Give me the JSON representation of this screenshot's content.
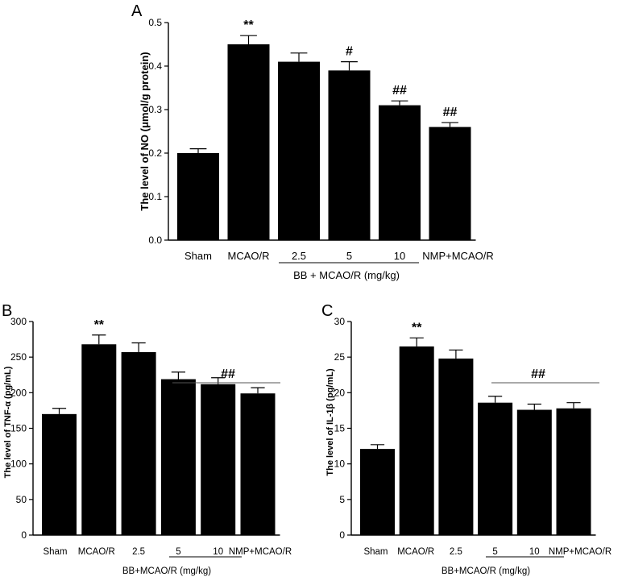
{
  "colors": {
    "bar": "#000000",
    "axis": "#000000",
    "background": "#ffffff"
  },
  "chart_data": [
    {
      "panel": "A",
      "type": "bar",
      "ylabel": "The level of NO (μmol/g protein)",
      "xlabel": "",
      "categories": [
        "Sham",
        "MCAO/R",
        "2.5",
        "5",
        "10",
        "NMP+MCAO/R"
      ],
      "values": [
        0.2,
        0.45,
        0.41,
        0.39,
        0.31,
        0.26
      ],
      "errors": [
        0.01,
        0.02,
        0.02,
        0.02,
        0.01,
        0.01
      ],
      "annotations": [
        "",
        "**",
        "",
        "#",
        "##",
        "##"
      ],
      "group_label": "BB + MCAO/R (mg/kg)",
      "yticks": [
        "0.0",
        "0.1",
        "0.2",
        "0.3",
        "0.4",
        "0.5"
      ],
      "ylim": [
        0,
        0.5
      ],
      "grid": false
    },
    {
      "panel": "B",
      "type": "bar",
      "ylabel": "The level of TNF-α (pg/mL)",
      "xlabel": "",
      "categories": [
        "Sham",
        "MCAO/R",
        "2.5",
        "5",
        "10",
        "NMP+MCAO/R"
      ],
      "values": [
        170,
        268,
        257,
        219,
        212,
        199
      ],
      "errors": [
        8,
        13,
        13,
        10,
        9,
        8
      ],
      "annotations": [
        "",
        "**",
        "",
        "",
        "",
        ""
      ],
      "bracket_label": "##",
      "group_label": "BB+MCAO/R (mg/kg)",
      "yticks": [
        "0",
        "50",
        "100",
        "150",
        "200",
        "250",
        "300"
      ],
      "ylim": [
        0,
        300
      ],
      "grid": false
    },
    {
      "panel": "C",
      "type": "bar",
      "ylabel": "The level of IL-1β (pg/mL)",
      "xlabel": "",
      "categories": [
        "Sham",
        "MCAO/R",
        "2.5",
        "5",
        "10",
        "NMP+MCAO/R"
      ],
      "values": [
        12.1,
        26.5,
        24.8,
        18.6,
        17.6,
        17.8
      ],
      "errors": [
        0.6,
        1.2,
        1.2,
        0.9,
        0.8,
        0.8
      ],
      "annotations": [
        "",
        "**",
        "",
        "",
        "",
        ""
      ],
      "bracket_label": "##",
      "group_label": "BB+MCAO/R (mg/kg)",
      "yticks": [
        "0",
        "5",
        "10",
        "15",
        "20",
        "25",
        "30"
      ],
      "ylim": [
        0,
        30
      ],
      "grid": false
    }
  ]
}
